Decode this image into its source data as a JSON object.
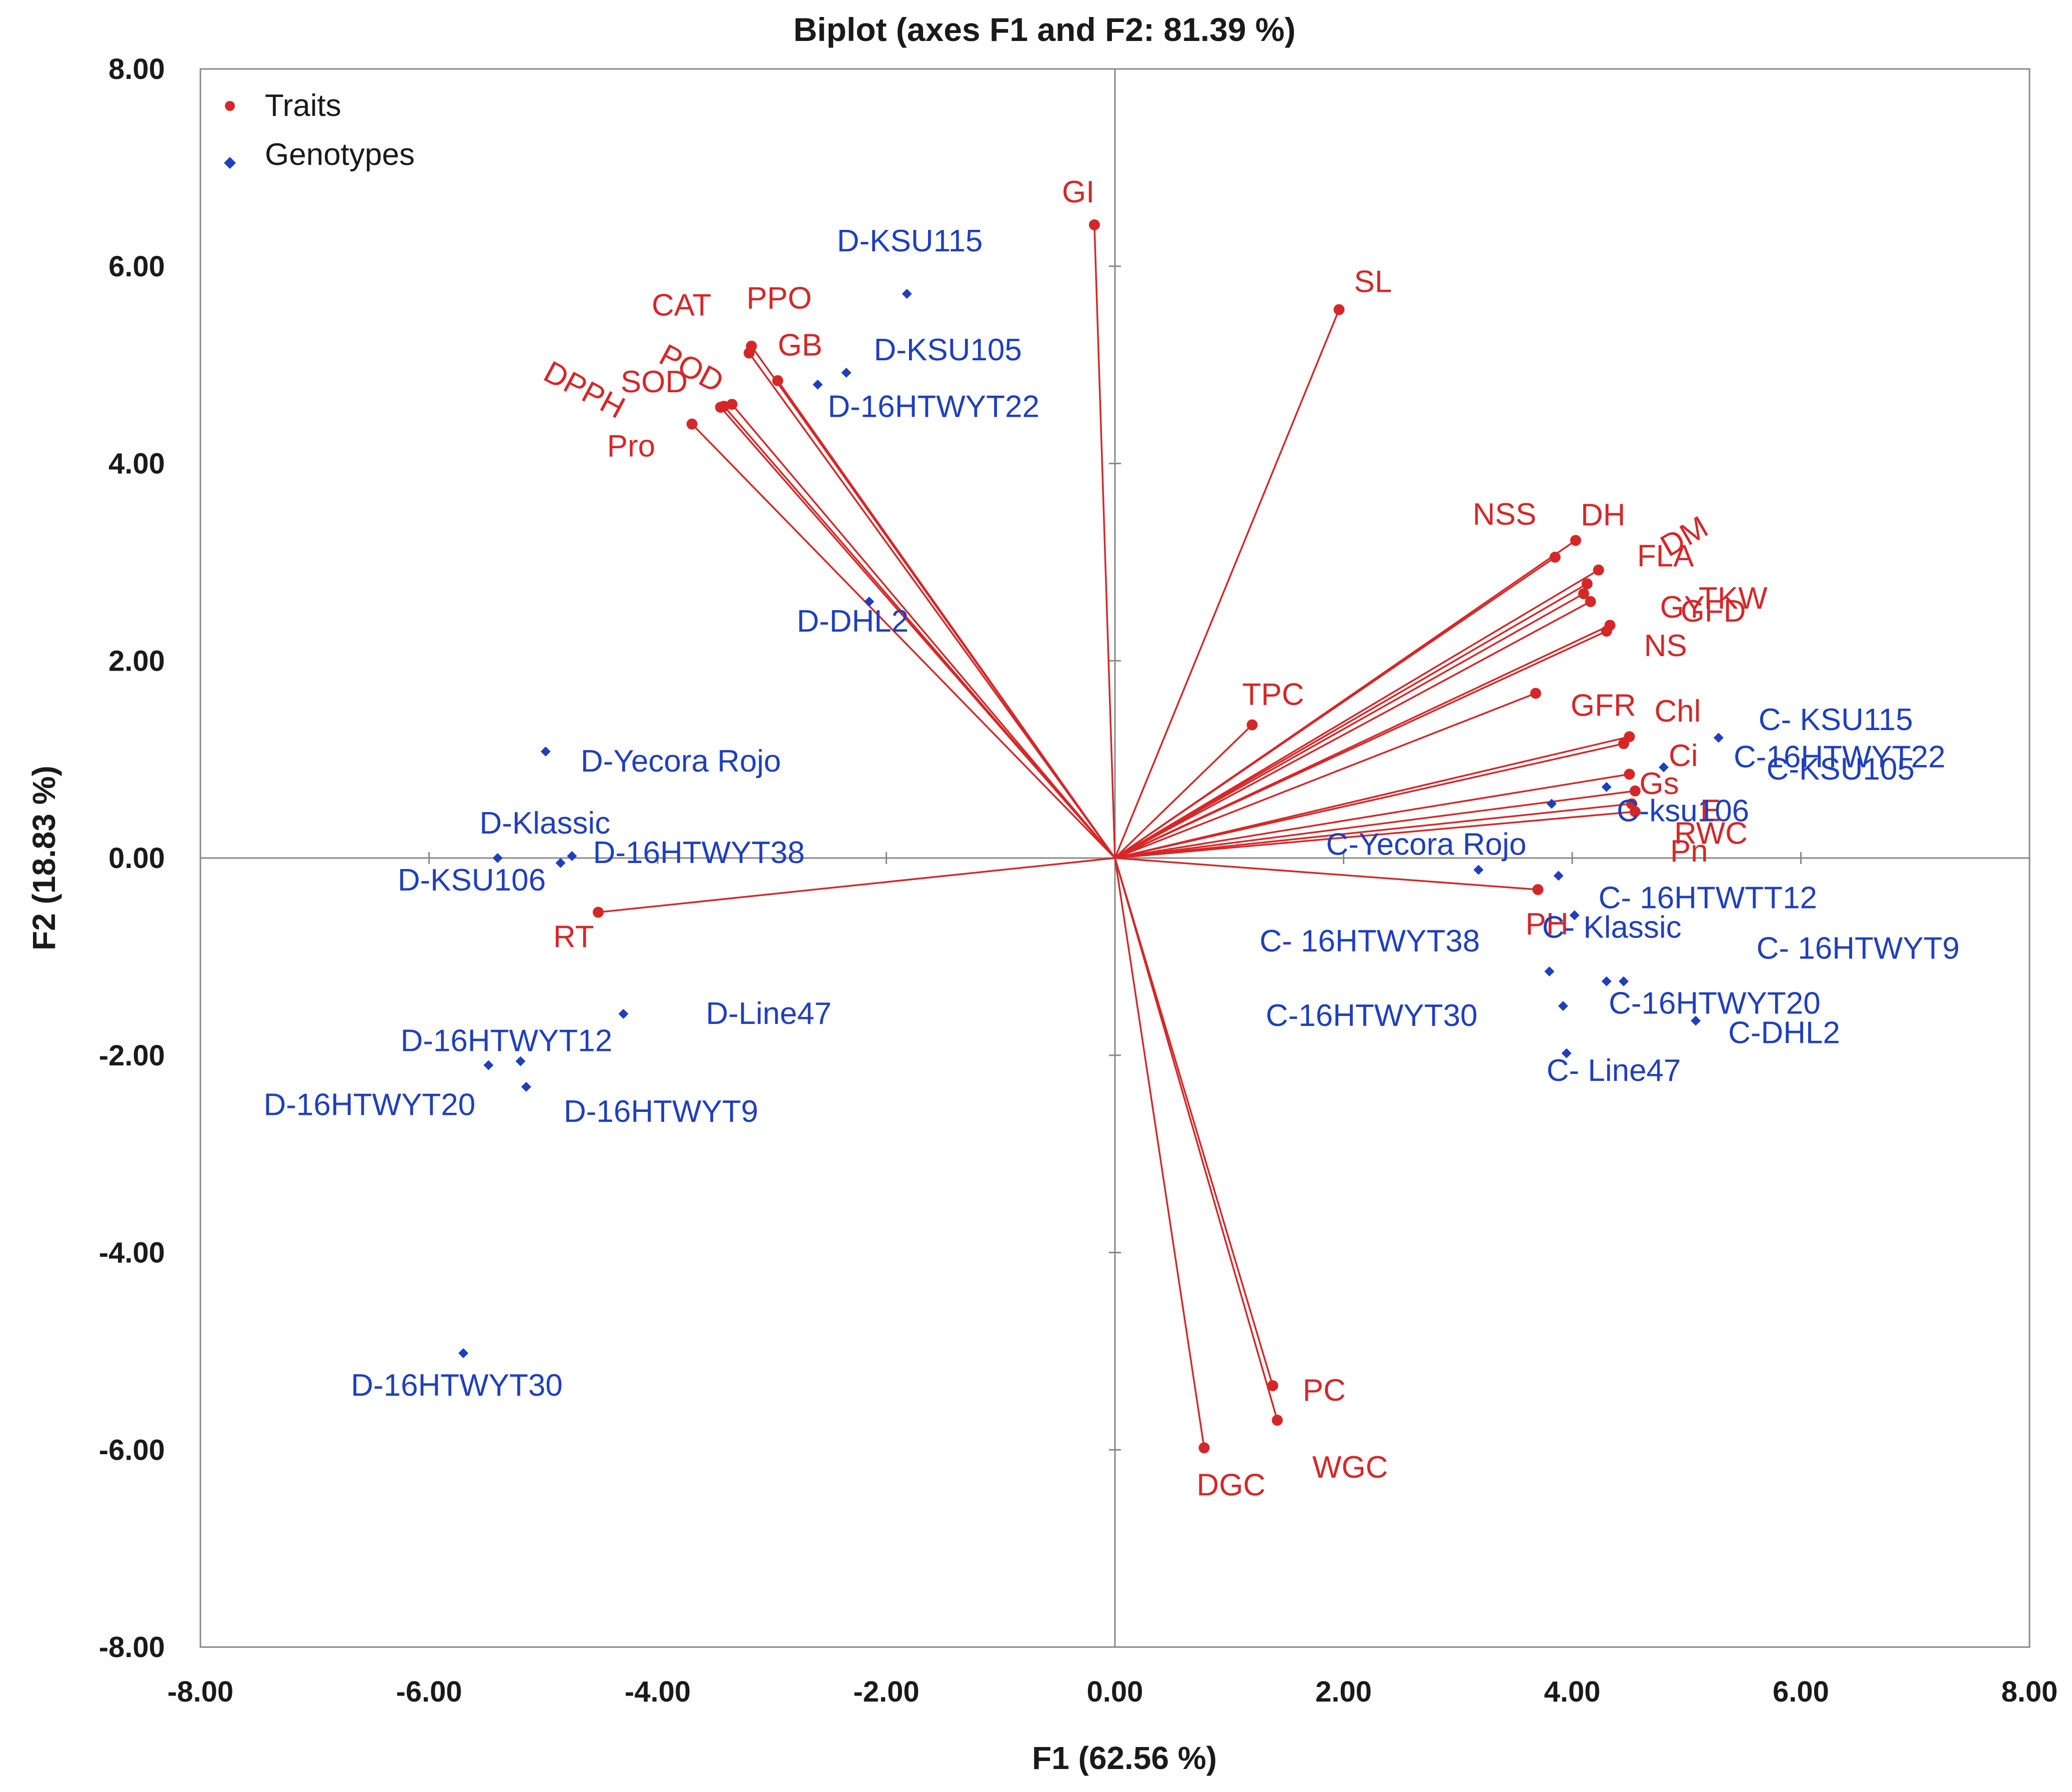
{
  "chart_data": {
    "type": "scatter",
    "title": "Biplot (axes F1 and F2: 81.39 %)",
    "xlabel": "F1 (62.56 %)",
    "ylabel": "F2 (18.83 %)",
    "xlim": [
      -8,
      8
    ],
    "ylim": [
      -8,
      8
    ],
    "xticks": [
      "-8.00",
      "-6.00",
      "-4.00",
      "-2.00",
      "0.00",
      "2.00",
      "4.00",
      "6.00",
      "8.00"
    ],
    "yticks": [
      "8.00",
      "6.00",
      "4.00",
      "2.00",
      "0.00",
      "-2.00",
      "-4.00",
      "-6.00",
      "-8.00"
    ],
    "legend": [
      {
        "name": "Traits",
        "color": "#d62728",
        "marker": "circle"
      },
      {
        "name": "Genotypes",
        "color": "#1f3fbf",
        "marker": "diamond"
      }
    ],
    "legend_position": "top-left",
    "colors": {
      "traits": "#d62728",
      "genotypes": "#1f3fbf",
      "axis": "#888888"
    },
    "traits": [
      {
        "label": "GI",
        "x": -0.18,
        "y": 6.42
      },
      {
        "label": "SL",
        "x": 1.96,
        "y": 5.56
      },
      {
        "label": "CAT",
        "x": -3.2,
        "y": 5.12
      },
      {
        "label": "PPO",
        "x": -3.18,
        "y": 5.19
      },
      {
        "label": "GB",
        "x": -2.95,
        "y": 4.84
      },
      {
        "label": "POD",
        "x": -3.35,
        "y": 4.6
      },
      {
        "label": "SOD",
        "x": -3.45,
        "y": 4.57
      },
      {
        "label": "DPPH",
        "x": -3.42,
        "y": 4.58
      },
      {
        "label": "Pro",
        "x": -3.7,
        "y": 4.4
      },
      {
        "label": "NSS",
        "x": 3.85,
        "y": 3.05
      },
      {
        "label": "DH",
        "x": 4.03,
        "y": 3.22
      },
      {
        "label": "DM",
        "x": 4.23,
        "y": 2.92
      },
      {
        "label": "FLA",
        "x": 4.13,
        "y": 2.78
      },
      {
        "label": "TKW",
        "x": 4.1,
        "y": 2.68
      },
      {
        "label": "GFD",
        "x": 4.16,
        "y": 2.6
      },
      {
        "label": "GY",
        "x": 4.33,
        "y": 2.36
      },
      {
        "label": "NS",
        "x": 4.3,
        "y": 2.3
      },
      {
        "label": "GFR",
        "x": 3.68,
        "y": 1.67
      },
      {
        "label": "TPC",
        "x": 1.2,
        "y": 1.35
      },
      {
        "label": "Chl",
        "x": 4.5,
        "y": 1.23
      },
      {
        "label": "Ci",
        "x": 4.45,
        "y": 1.16
      },
      {
        "label": "Gs",
        "x": 4.5,
        "y": 0.85
      },
      {
        "label": "E",
        "x": 4.55,
        "y": 0.68
      },
      {
        "label": "RWC",
        "x": 4.52,
        "y": 0.55
      },
      {
        "label": "Pn",
        "x": 4.55,
        "y": 0.47
      },
      {
        "label": "PH",
        "x": 3.7,
        "y": -0.32
      },
      {
        "label": "RT",
        "x": -4.52,
        "y": -0.55
      },
      {
        "label": "PC",
        "x": 1.38,
        "y": -5.35
      },
      {
        "label": "WGC",
        "x": 1.42,
        "y": -5.7
      },
      {
        "label": "DGC",
        "x": 0.78,
        "y": -5.98
      }
    ],
    "genotypes": [
      {
        "label": "D-KSU115",
        "x": -1.82,
        "y": 5.72
      },
      {
        "label": "D-KSU105",
        "x": -2.35,
        "y": 4.92
      },
      {
        "label": "D-16HTWYT22",
        "x": -2.6,
        "y": 4.8
      },
      {
        "label": "D-DHL2",
        "x": -2.15,
        "y": 2.6
      },
      {
        "label": "D-Yecora Rojo",
        "x": -4.98,
        "y": 1.08
      },
      {
        "label": "D-Klassic",
        "x": -4.75,
        "y": 0.02
      },
      {
        "label": "D-16HTWYT38",
        "x": -4.85,
        "y": -0.05
      },
      {
        "label": "D-KSU106",
        "x": -5.4,
        "y": 0.0
      },
      {
        "label": "D-Line47",
        "x": -4.3,
        "y": -1.58
      },
      {
        "label": "D-16HTWYT12",
        "x": -5.2,
        "y": -2.06
      },
      {
        "label": "D-16HTWYT20",
        "x": -5.48,
        "y": -2.1
      },
      {
        "label": "D-16HTWYT9",
        "x": -5.15,
        "y": -2.32
      },
      {
        "label": "D-16HTWYT30",
        "x": -5.7,
        "y": -5.02
      },
      {
        "label": "C- KSU115",
        "x": 5.28,
        "y": 1.22
      },
      {
        "label": "C-16HTWYT22",
        "x": 4.8,
        "y": 0.92
      },
      {
        "label": "C-KSU105",
        "x": 4.3,
        "y": 0.72
      },
      {
        "label": "C-ksu106",
        "x": 3.82,
        "y": 0.55
      },
      {
        "label": "C-Yecora Rojo",
        "x": 3.18,
        "y": -0.12
      },
      {
        "label": "C- 16HTWTT12",
        "x": 3.88,
        "y": -0.18
      },
      {
        "label": "C- Klassic",
        "x": 4.02,
        "y": -0.58
      },
      {
        "label": "C- 16HTWYT38",
        "x": 3.8,
        "y": -1.15
      },
      {
        "label": "C- 16HTWYT9",
        "x": 4.3,
        "y": -1.25
      },
      {
        "label": "C-16HTWYT20",
        "x": 4.45,
        "y": -1.25
      },
      {
        "label": "C-16HTWYT30",
        "x": 3.92,
        "y": -1.5
      },
      {
        "label": "C-DHL2",
        "x": 5.08,
        "y": -1.65
      },
      {
        "label": "C- Line47",
        "x": 3.95,
        "y": -1.98
      }
    ]
  }
}
